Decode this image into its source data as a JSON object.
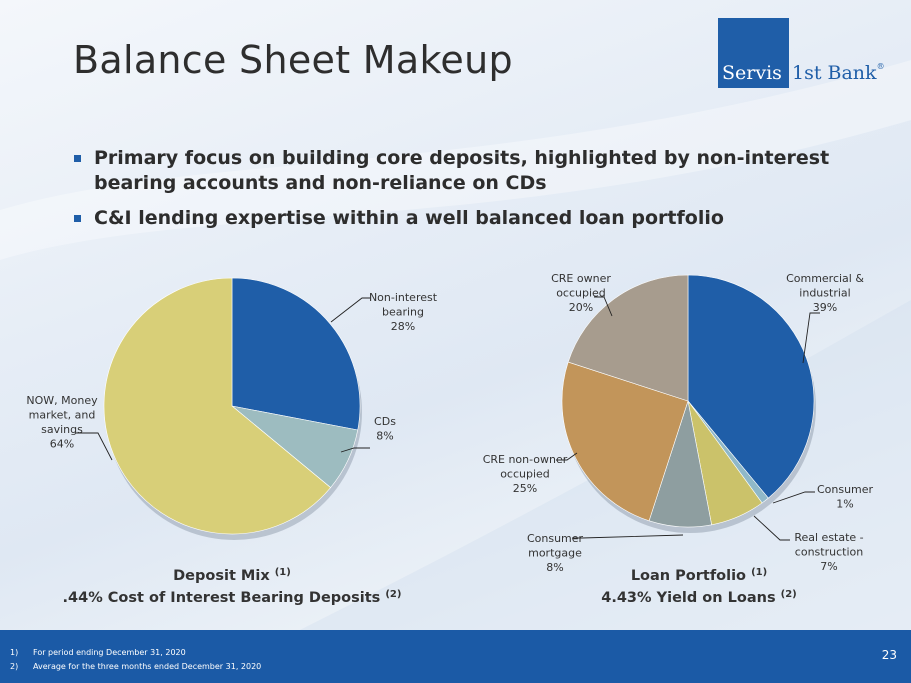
{
  "title": "Balance Sheet Makeup",
  "logo": {
    "part1": "Servis",
    "part2": "1st Bank",
    "reg": "®"
  },
  "bullets": [
    "Primary focus on building core deposits, highlighted by non-interest bearing accounts and non-reliance on CDs",
    "C&I lending expertise within a well balanced loan portfolio"
  ],
  "chart_data": [
    {
      "type": "pie",
      "title": "Deposit Mix",
      "title_sup": "(1)",
      "subtitle": ".44% Cost of Interest Bearing Deposits",
      "subtitle_sup": "(2)",
      "slices": [
        {
          "label_lines": [
            "Non-interest",
            "bearing"
          ],
          "pct_text": "28%",
          "value": 28,
          "color": "#1f5ea8"
        },
        {
          "label_lines": [
            "CDs"
          ],
          "pct_text": "8%",
          "value": 8,
          "color": "#9dbcc0"
        },
        {
          "label_lines": [
            "NOW, Money",
            "market, and",
            "savings"
          ],
          "pct_text": "64%",
          "value": 64,
          "color": "#d8cf78"
        }
      ]
    },
    {
      "type": "pie",
      "title": "Loan Portfolio",
      "title_sup": "(1)",
      "subtitle": "4.43% Yield on Loans",
      "subtitle_sup": "(2)",
      "slices": [
        {
          "label_lines": [
            "Commercial &",
            "industrial"
          ],
          "pct_text": "39%",
          "value": 39,
          "color": "#1f5ea8"
        },
        {
          "label_lines": [
            "Consumer"
          ],
          "pct_text": "1%",
          "value": 1,
          "color": "#8fb8c8"
        },
        {
          "label_lines": [
            "Real estate -",
            "construction"
          ],
          "pct_text": "7%",
          "value": 7,
          "color": "#cbc26a"
        },
        {
          "label_lines": [
            "Consumer",
            "mortgage"
          ],
          "pct_text": "8%",
          "value": 8,
          "color": "#8e9ea0"
        },
        {
          "label_lines": [
            "CRE non-owner",
            "occupied"
          ],
          "pct_text": "25%",
          "value": 25,
          "color": "#c2955a"
        },
        {
          "label_lines": [
            "CRE owner",
            "occupied"
          ],
          "pct_text": "20%",
          "value": 20,
          "color": "#a79c8e"
        }
      ]
    }
  ],
  "footnotes": [
    {
      "num": "1)",
      "text": "For period ending December 31, 2020"
    },
    {
      "num": "2)",
      "text": "Average for the three months ended December 31, 2020"
    }
  ],
  "page_number": "23"
}
